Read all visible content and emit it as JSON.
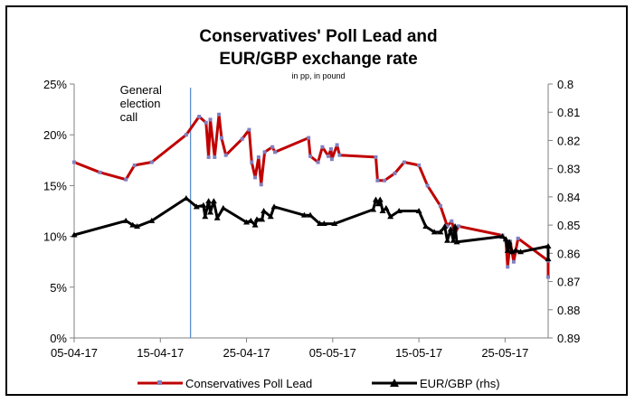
{
  "chart_data": {
    "type": "line",
    "title_line1": "Conservatives' Poll Lead and",
    "title_line2": "EUR/GBP exchange rate",
    "subtitle": "in pp, in pound",
    "x_tick_labels": [
      "05-04-17",
      "15-04-17",
      "25-04-17",
      "05-05-17",
      "15-05-17",
      "25-05-17"
    ],
    "x_ticks_day": [
      0,
      10,
      20,
      30,
      40,
      50
    ],
    "xlim_day": [
      0,
      55
    ],
    "y_left": {
      "ylim": [
        0,
        25
      ],
      "tick_values": [
        0,
        5,
        10,
        15,
        20,
        25
      ],
      "tick_labels": [
        "0%",
        "5%",
        "10%",
        "15%",
        "20%",
        "25%"
      ]
    },
    "y_right": {
      "ylim": [
        0.89,
        0.8
      ],
      "inverted": true,
      "tick_values": [
        0.8,
        0.81,
        0.82,
        0.83,
        0.84,
        0.85,
        0.86,
        0.87,
        0.88,
        0.89
      ],
      "tick_labels": [
        "0.8",
        "0.81",
        "0.82",
        "0.83",
        "0.84",
        "0.85",
        "0.86",
        "0.87",
        "0.88",
        "0.89"
      ]
    },
    "annotation": {
      "lines": [
        "General",
        "election",
        "call"
      ],
      "day": 13.5
    },
    "series": [
      {
        "name": "Conservatives Poll Lead",
        "axis": "left",
        "color": "#c00000",
        "marker_color": "#8080c0",
        "points": [
          [
            0,
            17.3
          ],
          [
            3,
            16.3
          ],
          [
            6,
            15.6
          ],
          [
            7,
            17.0
          ],
          [
            9,
            17.3
          ],
          [
            13,
            20.0
          ],
          [
            14.5,
            21.8
          ],
          [
            15.3,
            21.2
          ],
          [
            15.6,
            17.8
          ],
          [
            15.8,
            21.5
          ],
          [
            16.3,
            17.8
          ],
          [
            16.8,
            22.0
          ],
          [
            17.1,
            19.7
          ],
          [
            17.6,
            18.0
          ],
          [
            19.5,
            19.6
          ],
          [
            20.3,
            20.5
          ],
          [
            20.6,
            17.3
          ],
          [
            21.0,
            15.8
          ],
          [
            21.4,
            17.8
          ],
          [
            21.7,
            15.1
          ],
          [
            22.1,
            18.3
          ],
          [
            23.0,
            18.8
          ],
          [
            23.3,
            18.3
          ],
          [
            27.2,
            19.7
          ],
          [
            27.4,
            17.9
          ],
          [
            28.3,
            17.3
          ],
          [
            28.8,
            18.8
          ],
          [
            29.5,
            17.9
          ],
          [
            29.8,
            18.6
          ],
          [
            29.9,
            17.6
          ],
          [
            30.5,
            19.0
          ],
          [
            30.8,
            18.0
          ],
          [
            35.0,
            17.8
          ],
          [
            35.2,
            15.5
          ],
          [
            36.0,
            15.5
          ],
          [
            37.2,
            16.2
          ],
          [
            38.3,
            17.3
          ],
          [
            40.0,
            17.0
          ],
          [
            41.0,
            15.0
          ],
          [
            42.5,
            13.0
          ],
          [
            43.3,
            11.0
          ],
          [
            43.8,
            11.5
          ],
          [
            44.2,
            10.3
          ],
          [
            44.6,
            11.0
          ],
          [
            49.7,
            10.1
          ],
          [
            50.1,
            9.5
          ],
          [
            50.3,
            7.0
          ],
          [
            50.6,
            9.5
          ],
          [
            51.0,
            7.5
          ],
          [
            51.5,
            9.8
          ],
          [
            55.0,
            7.6
          ],
          [
            55.0,
            6.0
          ]
        ]
      },
      {
        "name": "EUR/GBP (rhs)",
        "axis": "right",
        "color": "#000000",
        "points": [
          [
            0,
            0.8535
          ],
          [
            6,
            0.8485
          ],
          [
            6.8,
            0.85
          ],
          [
            7.3,
            0.8505
          ],
          [
            9,
            0.8485
          ],
          [
            13,
            0.8405
          ],
          [
            14.2,
            0.8435
          ],
          [
            15.0,
            0.843
          ],
          [
            15.2,
            0.847
          ],
          [
            15.6,
            0.8415
          ],
          [
            15.8,
            0.8455
          ],
          [
            16.2,
            0.8415
          ],
          [
            16.6,
            0.8475
          ],
          [
            17.3,
            0.844
          ],
          [
            20.0,
            0.849
          ],
          [
            20.5,
            0.8485
          ],
          [
            21.0,
            0.85
          ],
          [
            21.2,
            0.848
          ],
          [
            21.8,
            0.848
          ],
          [
            22.0,
            0.845
          ],
          [
            22.8,
            0.847
          ],
          [
            23.2,
            0.8435
          ],
          [
            26.7,
            0.8465
          ],
          [
            27.4,
            0.8465
          ],
          [
            28.5,
            0.8495
          ],
          [
            29.0,
            0.8495
          ],
          [
            30.2,
            0.8495
          ],
          [
            34.7,
            0.8445
          ],
          [
            35.0,
            0.841
          ],
          [
            35.3,
            0.8425
          ],
          [
            35.5,
            0.841
          ],
          [
            35.8,
            0.845
          ],
          [
            36.2,
            0.844
          ],
          [
            36.7,
            0.847
          ],
          [
            37.7,
            0.845
          ],
          [
            40.0,
            0.845
          ],
          [
            40.8,
            0.8505
          ],
          [
            41.8,
            0.8525
          ],
          [
            42.5,
            0.8525
          ],
          [
            43.0,
            0.8505
          ],
          [
            43.3,
            0.8555
          ],
          [
            43.7,
            0.8515
          ],
          [
            44.0,
            0.8555
          ],
          [
            44.2,
            0.8505
          ],
          [
            44.4,
            0.856
          ],
          [
            49.7,
            0.854
          ],
          [
            50.1,
            0.855
          ],
          [
            50.3,
            0.859
          ],
          [
            50.5,
            0.856
          ],
          [
            50.8,
            0.8595
          ],
          [
            51.2,
            0.859
          ],
          [
            51.8,
            0.8595
          ],
          [
            55.0,
            0.8575
          ],
          [
            55.0,
            0.862
          ]
        ]
      }
    ],
    "legend": {
      "position": "bottom"
    }
  }
}
